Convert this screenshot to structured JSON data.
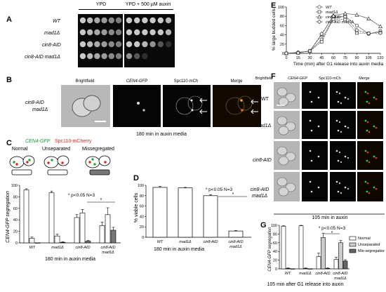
{
  "panels": {
    "A": {
      "label": "A",
      "cond_left": "YPD",
      "cond_right": "YPD + 500 µM auxin",
      "rows": [
        "WT",
        "mad1Δ",
        "cin8-AID",
        "cin8-AID mad1Δ"
      ]
    },
    "B": {
      "label": "B",
      "strain_line1": "cin8-AID",
      "strain_line2": "mad1Δ",
      "headers": [
        "Brightfield",
        "CEN4-GFP",
        "Spc110-mCh",
        "Merge"
      ],
      "caption": "180 min in auxin media"
    },
    "C": {
      "label": "C",
      "legend_gfp": "CEN4-GFP",
      "legend_mch": "Spc110-mCherry",
      "categories_header": [
        "Normal",
        "Unseparated",
        "Missegregated"
      ],
      "sig": "* p<0.05 N=3",
      "xlabel": "180 min in auxin media"
    },
    "D": {
      "label": "D",
      "sig": "* p<0.05 N=3",
      "xlabel": "180 min in auxin media"
    },
    "E": {
      "label": "E"
    },
    "F": {
      "label": "F",
      "headers": [
        "Brightfield",
        "CEN4-GFP",
        "Spc110-mCh",
        "Merge"
      ],
      "rows": [
        "WT",
        "mad1Δ",
        "cin8-AID",
        "cin8-AID mad1Δ"
      ],
      "caption": "105 min in auxin"
    },
    "G": {
      "label": "G",
      "sig": "* p<0.05 N=3",
      "xlabel": "105 min after G1 release into auxin"
    }
  },
  "chart_data": [
    {
      "id": "C",
      "type": "bar",
      "ylabel": "CEN4-GFP segregation",
      "ylim": [
        0,
        100
      ],
      "yticks": [
        0,
        20,
        40,
        60,
        80,
        100
      ],
      "categories": [
        "WT",
        "mad1Δ",
        "cin8-AID",
        "cin8-AID mad1Δ"
      ],
      "series": [
        {
          "name": "Normal",
          "color": "#ffffff",
          "values": [
            92,
            87,
            44,
            30
          ],
          "err": [
            2,
            3,
            5,
            6
          ]
        },
        {
          "name": "Unseparated",
          "color": "#ffffff",
          "values": [
            8,
            12,
            52,
            49
          ],
          "err": [
            2,
            3,
            6,
            12
          ]
        },
        {
          "name": "Missegregated",
          "color": "#777777",
          "values": [
            0,
            1,
            3,
            22
          ],
          "err": [
            0,
            1,
            1,
            5
          ]
        }
      ]
    },
    {
      "id": "D",
      "type": "bar",
      "ylabel": "% viable cells",
      "ylim": [
        0,
        100
      ],
      "yticks": [
        0,
        20,
        40,
        60,
        80,
        100
      ],
      "categories": [
        "WT",
        "mad1Δ",
        "cin8-AID",
        "cin8-AID mad1Δ"
      ],
      "values": [
        96,
        95,
        80,
        12
      ],
      "err": [
        2,
        1,
        2,
        1
      ]
    },
    {
      "id": "E",
      "type": "line",
      "ylabel": "% large budded cells",
      "xlabel": "Time (min) after G1 release into auxin media",
      "xlim": [
        0,
        120
      ],
      "ylim": [
        0,
        100
      ],
      "xticks": [
        0,
        15,
        30,
        45,
        60,
        75,
        90,
        105,
        120
      ],
      "yticks": [
        0,
        20,
        40,
        60,
        80,
        100
      ],
      "x": [
        0,
        15,
        30,
        45,
        60,
        75,
        90,
        105,
        120
      ],
      "series": [
        {
          "name": "WT",
          "marker": "circle",
          "values": [
            0,
            2,
            5,
            30,
            76,
            80,
            60,
            42,
            48
          ]
        },
        {
          "name": "mad1Δ",
          "marker": "square",
          "values": [
            0,
            1,
            5,
            25,
            74,
            73,
            44,
            43,
            45
          ]
        },
        {
          "name": "cin8-AID",
          "marker": "triangle",
          "values": [
            0,
            2,
            5,
            40,
            82,
            86,
            83,
            75,
            58
          ]
        },
        {
          "name": "cin8-AID mad1Δ",
          "marker": "diamond",
          "values": [
            0,
            1,
            5,
            42,
            80,
            79,
            50,
            43,
            44
          ]
        }
      ]
    },
    {
      "id": "G",
      "type": "bar",
      "ylabel": "CEN4-GFP segregation",
      "ylim": [
        0,
        100
      ],
      "yticks": [
        0,
        20,
        40,
        60,
        80,
        100
      ],
      "categories": [
        "WT",
        "mad1Δ",
        "cin8-AID",
        "cin8-AID mad1Δ"
      ],
      "series": [
        {
          "name": "Normal",
          "color": "#ffffff",
          "values": [
            98,
            99,
            28,
            22
          ],
          "err": [
            1,
            1,
            8,
            5
          ]
        },
        {
          "name": "Unseparated",
          "color": "#cccccc",
          "values": [
            1,
            1,
            72,
            60
          ],
          "err": [
            1,
            1,
            10,
            5
          ]
        },
        {
          "name": "Mis-segregation",
          "color": "#666666",
          "values": [
            0,
            0,
            1,
            18
          ],
          "err": [
            0,
            0,
            1,
            3
          ]
        }
      ]
    }
  ]
}
